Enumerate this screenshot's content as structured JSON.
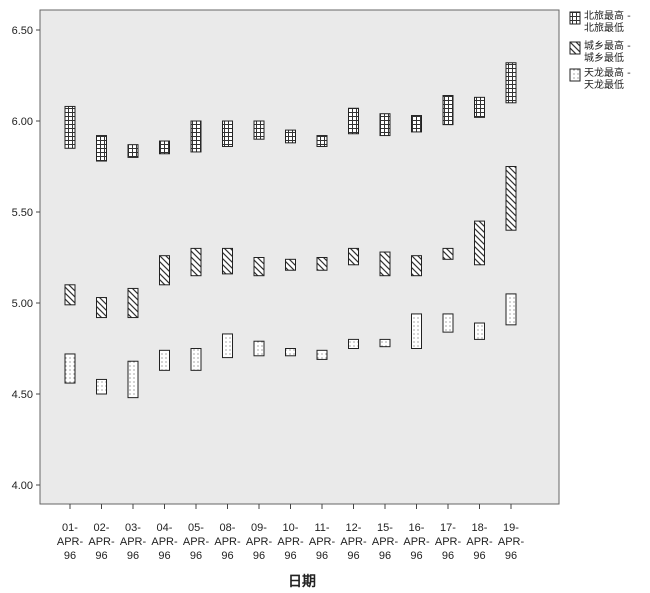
{
  "chart_data": {
    "type": "high-low",
    "xlabel": "日期",
    "ylabel": "",
    "ylim": [
      3.9,
      6.55
    ],
    "yticks": [
      "4.00",
      "4.50",
      "5.00",
      "5.50",
      "6.00",
      "6.50"
    ],
    "categories": [
      "01-APR-96",
      "02-APR-96",
      "03-APR-96",
      "04-APR-96",
      "05-APR-96",
      "08-APR-96",
      "09-APR-96",
      "10-APR-96",
      "11-APR-96",
      "12-APR-96",
      "15-APR-96",
      "16-APR-96",
      "17-APR-96",
      "18-APR-96",
      "19-APR-96"
    ],
    "category_lines": [
      [
        "01-",
        "APR-",
        "96"
      ],
      [
        "02-",
        "APR-",
        "96"
      ],
      [
        "03-",
        "APR-",
        "96"
      ],
      [
        "04-",
        "APR-",
        "96"
      ],
      [
        "05-",
        "APR-",
        "96"
      ],
      [
        "08-",
        "APR-",
        "96"
      ],
      [
        "09-",
        "APR-",
        "96"
      ],
      [
        "10-",
        "APR-",
        "96"
      ],
      [
        "11-",
        "APR-",
        "96"
      ],
      [
        "12-",
        "APR-",
        "96"
      ],
      [
        "15-",
        "APR-",
        "96"
      ],
      [
        "16-",
        "APR-",
        "96"
      ],
      [
        "17-",
        "APR-",
        "96"
      ],
      [
        "18-",
        "APR-",
        "96"
      ],
      [
        "19-",
        "APR-",
        "96"
      ]
    ],
    "legend_position": "right-top",
    "series": [
      {
        "legend": [
          "北旅最高 -",
          "北旅最低"
        ],
        "pattern": "grid",
        "high": [
          6.08,
          5.92,
          5.87,
          5.89,
          6.0,
          6.0,
          6.0,
          5.95,
          5.92,
          6.07,
          6.04,
          6.03,
          6.14,
          6.13,
          6.32
        ],
        "low": [
          5.85,
          5.78,
          5.8,
          5.82,
          5.83,
          5.86,
          5.9,
          5.88,
          5.86,
          5.93,
          5.92,
          5.94,
          5.98,
          6.02,
          6.1
        ]
      },
      {
        "legend": [
          "城乡最高 -",
          "城乡最低"
        ],
        "pattern": "diagonal",
        "high": [
          5.1,
          5.03,
          5.08,
          5.26,
          5.3,
          5.3,
          5.25,
          5.24,
          5.25,
          5.3,
          5.28,
          5.26,
          5.3,
          5.45,
          5.75
        ],
        "low": [
          4.99,
          4.92,
          4.92,
          5.1,
          5.15,
          5.16,
          5.15,
          5.18,
          5.18,
          5.21,
          5.15,
          5.15,
          5.24,
          5.21,
          5.4
        ]
      },
      {
        "legend": [
          "天龙最高 -",
          "天龙最低"
        ],
        "pattern": "dots",
        "high": [
          4.72,
          4.58,
          4.68,
          4.74,
          4.75,
          4.83,
          4.79,
          4.75,
          4.74,
          4.8,
          4.8,
          4.94,
          4.94,
          4.89,
          5.05
        ],
        "low": [
          4.56,
          4.5,
          4.48,
          4.63,
          4.63,
          4.7,
          4.71,
          4.71,
          4.69,
          4.75,
          4.76,
          4.75,
          4.84,
          4.8,
          4.88
        ]
      }
    ]
  }
}
